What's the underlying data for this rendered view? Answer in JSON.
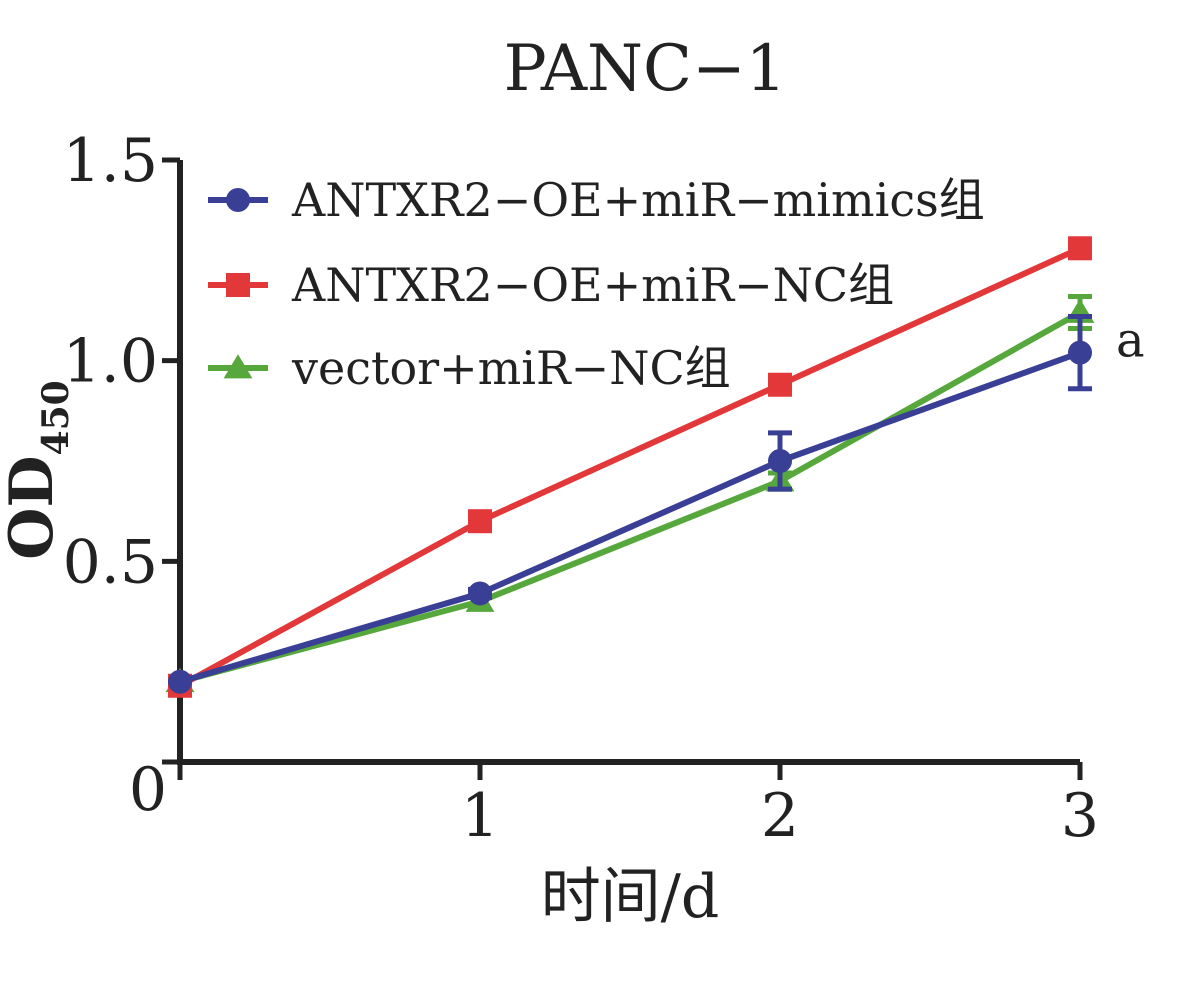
{
  "chart_data": {
    "type": "line",
    "title": "PANC−1",
    "xlabel": "时间/d",
    "ylabel": "OD",
    "ylabel_subscript": "450",
    "x": [
      0,
      1,
      2,
      3
    ],
    "xlim": [
      0,
      3
    ],
    "ylim": [
      0,
      1.5
    ],
    "xticks": [
      0,
      1,
      2,
      3
    ],
    "xtick_labels": [
      "1",
      "2",
      "3"
    ],
    "yticks": [
      0,
      0.5,
      1.0,
      1.5
    ],
    "ytick_labels": [
      "0",
      "0.5",
      "1.0",
      "1.5"
    ],
    "grid": false,
    "legend_position": "top-left",
    "series": [
      {
        "name": "ANTXR2−OE+miR−mimics组",
        "color": "#3a3f96",
        "marker": "circle",
        "values": [
          0.2,
          0.42,
          0.75,
          1.02
        ],
        "errors": [
          0.0,
          0.01,
          0.07,
          0.09
        ]
      },
      {
        "name": "ANTXR2−OE+miR−NC组",
        "color": "#e2383a",
        "marker": "square",
        "values": [
          0.19,
          0.6,
          0.94,
          1.28
        ],
        "errors": [
          0.0,
          0.0,
          0.0,
          0.0
        ]
      },
      {
        "name": "vector+miR−NC组",
        "color": "#56a83c",
        "marker": "triangle",
        "values": [
          0.2,
          0.4,
          0.7,
          1.12
        ],
        "errors": [
          0.0,
          0.0,
          0.02,
          0.04
        ]
      }
    ],
    "annotations": [
      {
        "text": "a",
        "x": 3,
        "y": 1.02,
        "series": 0
      }
    ]
  }
}
